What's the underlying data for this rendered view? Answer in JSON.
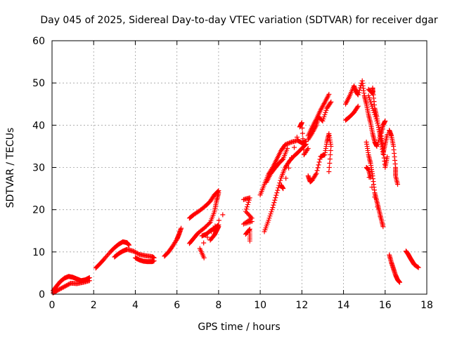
{
  "chart_data": {
    "type": "scatter",
    "title": "Day 045 of 2025, Sidereal Day-to-day VTEC variation (SDTVAR) for receiver dgar",
    "xlabel": "GPS time / hours",
    "ylabel": "SDTVAR / TECUs",
    "xlim": [
      0,
      18
    ],
    "ylim": [
      0,
      60
    ],
    "xticks": [
      "0",
      "2",
      "4",
      "6",
      "8",
      "10",
      "12",
      "14",
      "16",
      "18"
    ],
    "yticks": [
      "0",
      "10",
      "20",
      "30",
      "40",
      "50",
      "60"
    ],
    "grid": true,
    "marker": "+",
    "color": "#ff0000",
    "segments": [
      {
        "name": "s1",
        "points": [
          [
            0.05,
            0.8
          ],
          [
            0.2,
            1.8
          ],
          [
            0.4,
            3.0
          ],
          [
            0.6,
            3.8
          ],
          [
            0.8,
            4.2
          ],
          [
            1.0,
            4.0
          ],
          [
            1.2,
            3.6
          ],
          [
            1.4,
            3.2
          ],
          [
            1.6,
            3.4
          ],
          [
            1.8,
            3.9
          ]
        ]
      },
      {
        "name": "s2",
        "points": [
          [
            0.05,
            0.3
          ],
          [
            0.3,
            1.0
          ],
          [
            0.6,
            1.8
          ],
          [
            0.9,
            2.6
          ],
          [
            1.2,
            2.5
          ],
          [
            1.5,
            2.8
          ],
          [
            1.8,
            3.2
          ]
        ]
      },
      {
        "name": "s3",
        "points": [
          [
            2.1,
            6.2
          ],
          [
            2.3,
            7.2
          ],
          [
            2.5,
            8.3
          ],
          [
            2.8,
            10.0
          ],
          [
            3.0,
            11.0
          ],
          [
            3.2,
            11.8
          ],
          [
            3.4,
            12.4
          ],
          [
            3.6,
            12.2
          ],
          [
            3.7,
            11.6
          ]
        ]
      },
      {
        "name": "s4",
        "points": [
          [
            3.0,
            8.8
          ],
          [
            3.2,
            9.6
          ],
          [
            3.4,
            10.2
          ],
          [
            3.6,
            10.6
          ],
          [
            3.9,
            10.2
          ],
          [
            4.2,
            9.4
          ],
          [
            4.5,
            9.1
          ],
          [
            4.8,
            8.9
          ],
          [
            4.9,
            8.6
          ]
        ]
      },
      {
        "name": "s5",
        "points": [
          [
            4.0,
            8.6
          ],
          [
            4.2,
            8.1
          ],
          [
            4.4,
            7.8
          ],
          [
            4.6,
            7.7
          ],
          [
            4.8,
            7.7
          ],
          [
            4.9,
            7.9
          ]
        ]
      },
      {
        "name": "s6",
        "points": [
          [
            5.4,
            9.0
          ],
          [
            5.6,
            10.0
          ],
          [
            5.8,
            11.4
          ],
          [
            6.0,
            13.0
          ],
          [
            6.1,
            14.2
          ],
          [
            6.2,
            15.6
          ]
        ]
      },
      {
        "name": "s7",
        "points": [
          [
            6.6,
            12.0
          ],
          [
            6.8,
            13.2
          ],
          [
            7.0,
            14.4
          ],
          [
            7.3,
            15.6
          ],
          [
            7.6,
            17.0
          ],
          [
            7.8,
            19.5
          ],
          [
            7.9,
            22.0
          ],
          [
            8.0,
            24.0
          ]
        ]
      },
      {
        "name": "s8",
        "points": [
          [
            6.6,
            18.0
          ],
          [
            6.8,
            18.8
          ],
          [
            7.1,
            19.8
          ],
          [
            7.4,
            21.0
          ],
          [
            7.6,
            22.0
          ],
          [
            7.8,
            23.5
          ],
          [
            8.0,
            24.5
          ]
        ]
      },
      {
        "name": "s9",
        "points": [
          [
            7.2,
            13.8
          ],
          [
            7.4,
            14.2
          ],
          [
            7.6,
            15.0
          ],
          [
            7.8,
            15.6
          ],
          [
            8.0,
            16.4
          ]
        ]
      },
      {
        "name": "s10",
        "points": [
          [
            7.6,
            12.8
          ],
          [
            7.8,
            14.0
          ],
          [
            7.9,
            15.0
          ],
          [
            8.0,
            16.0
          ]
        ]
      },
      {
        "name": "s11",
        "points": [
          [
            7.3,
            8.6
          ],
          [
            7.1,
            10.8
          ],
          [
            8.2,
            18.8
          ],
          [
            9.5,
            12.6
          ],
          [
            9.5,
            15.4
          ],
          [
            9.3,
            14.2
          ]
        ]
      },
      {
        "name": "s12",
        "points": [
          [
            9.2,
            22.4
          ],
          [
            9.5,
            22.8
          ],
          [
            9.3,
            19.6
          ],
          [
            9.6,
            18.0
          ],
          [
            9.2,
            16.6
          ],
          [
            9.6,
            17.2
          ]
        ]
      },
      {
        "name": "s13",
        "points": [
          [
            10.0,
            23.5
          ],
          [
            10.2,
            26.0
          ],
          [
            10.4,
            28.4
          ],
          [
            10.6,
            30.0
          ],
          [
            10.8,
            32.0
          ],
          [
            11.0,
            34.0
          ],
          [
            11.2,
            35.4
          ],
          [
            11.5,
            36.0
          ],
          [
            11.8,
            36.4
          ],
          [
            12.0,
            35.8
          ],
          [
            12.2,
            36.2
          ]
        ]
      },
      {
        "name": "s14",
        "points": [
          [
            10.2,
            14.8
          ],
          [
            10.4,
            17.5
          ],
          [
            10.6,
            20.5
          ],
          [
            10.8,
            24.0
          ],
          [
            11.0,
            27.5
          ],
          [
            11.2,
            30.0
          ],
          [
            11.4,
            31.5
          ],
          [
            11.6,
            32.6
          ],
          [
            11.8,
            33.5
          ],
          [
            12.0,
            34.5
          ],
          [
            12.2,
            35.5
          ]
        ]
      },
      {
        "name": "s15",
        "points": [
          [
            10.3,
            26.5
          ],
          [
            10.5,
            28.5
          ],
          [
            10.7,
            29.8
          ],
          [
            10.9,
            31.0
          ],
          [
            11.1,
            32.0
          ],
          [
            11.3,
            34.5
          ]
        ]
      },
      {
        "name": "s16",
        "points": [
          [
            11.0,
            25.8
          ],
          [
            11.1,
            25.0
          ],
          [
            11.9,
            39.6
          ],
          [
            12.0,
            40.6
          ],
          [
            12.1,
            33.0
          ],
          [
            12.3,
            34.5
          ]
        ]
      },
      {
        "name": "s17",
        "points": [
          [
            12.3,
            37.5
          ],
          [
            12.5,
            39.6
          ],
          [
            12.7,
            41.5
          ],
          [
            12.9,
            43.6
          ],
          [
            13.1,
            45.4
          ],
          [
            13.3,
            47.3
          ]
        ]
      },
      {
        "name": "s18",
        "points": [
          [
            12.3,
            36.6
          ],
          [
            12.5,
            38.2
          ],
          [
            12.7,
            40.0
          ],
          [
            12.8,
            42.0
          ],
          [
            13.0,
            41.0
          ],
          [
            13.2,
            44.0
          ],
          [
            13.4,
            45.5
          ]
        ]
      },
      {
        "name": "s19",
        "points": [
          [
            12.3,
            28.0
          ],
          [
            12.4,
            26.6
          ],
          [
            12.5,
            27.0
          ],
          [
            12.7,
            28.6
          ],
          [
            12.9,
            32.6
          ],
          [
            13.1,
            33.0
          ],
          [
            13.2,
            36.0
          ],
          [
            13.3,
            38.0
          ],
          [
            13.4,
            35.0
          ],
          [
            13.3,
            29.0
          ]
        ]
      },
      {
        "name": "s20",
        "points": [
          [
            14.1,
            45.0
          ],
          [
            14.3,
            47.0
          ],
          [
            14.5,
            49.3
          ],
          [
            14.6,
            48.0
          ],
          [
            14.7,
            47.2
          ],
          [
            14.9,
            50.5
          ],
          [
            15.0,
            47.0
          ],
          [
            15.1,
            45.0
          ],
          [
            15.2,
            42.5
          ],
          [
            15.3,
            40.5
          ],
          [
            15.4,
            38.0
          ],
          [
            15.5,
            36.0
          ],
          [
            15.6,
            35.0
          ],
          [
            15.8,
            38.0
          ],
          [
            15.9,
            40.0
          ],
          [
            16.0,
            41.0
          ]
        ]
      },
      {
        "name": "s21",
        "points": [
          [
            14.1,
            41.2
          ],
          [
            14.3,
            42.0
          ],
          [
            14.5,
            43.0
          ],
          [
            14.7,
            44.5
          ]
        ]
      },
      {
        "name": "s22",
        "points": [
          [
            15.2,
            47.0
          ],
          [
            15.4,
            44.0
          ],
          [
            15.6,
            41.0
          ],
          [
            15.8,
            38.0
          ],
          [
            15.9,
            34.5
          ],
          [
            16.0,
            30.0
          ],
          [
            16.1,
            32.5
          ]
        ]
      },
      {
        "name": "s23",
        "points": [
          [
            15.1,
            36.0
          ],
          [
            15.2,
            33.0
          ],
          [
            15.3,
            31.0
          ],
          [
            15.4,
            28.0
          ],
          [
            15.5,
            24.0
          ],
          [
            15.6,
            22.0
          ],
          [
            15.7,
            20.0
          ],
          [
            15.8,
            18.0
          ],
          [
            15.9,
            16.0
          ],
          [
            15.1,
            30.0
          ],
          [
            15.2,
            29.5
          ],
          [
            15.3,
            27.6
          ]
        ]
      },
      {
        "name": "s24",
        "points": [
          [
            15.2,
            48.5
          ],
          [
            15.4,
            47.5
          ],
          [
            15.4,
            48.8
          ],
          [
            15.5,
            44.0
          ],
          [
            15.6,
            42.0
          ],
          [
            15.7,
            39.0
          ],
          [
            15.8,
            36.5
          ],
          [
            15.9,
            33.2
          ],
          [
            16.0,
            35.5
          ],
          [
            16.1,
            37.8
          ]
        ]
      },
      {
        "name": "s25",
        "points": [
          [
            16.2,
            38.8
          ],
          [
            16.3,
            37.5
          ],
          [
            16.4,
            35.0
          ],
          [
            16.5,
            30.0
          ],
          [
            16.5,
            28.0
          ],
          [
            16.6,
            26.0
          ]
        ]
      },
      {
        "name": "s26",
        "points": [
          [
            16.2,
            9.3
          ],
          [
            16.3,
            7.5
          ],
          [
            16.4,
            6.0
          ],
          [
            16.5,
            4.5
          ],
          [
            16.6,
            3.4
          ],
          [
            16.7,
            2.8
          ]
        ]
      },
      {
        "name": "s27",
        "points": [
          [
            17.0,
            10.2
          ],
          [
            17.1,
            9.5
          ],
          [
            17.2,
            8.6
          ],
          [
            17.3,
            7.8
          ],
          [
            17.4,
            7.0
          ],
          [
            17.6,
            6.3
          ]
        ]
      }
    ]
  }
}
